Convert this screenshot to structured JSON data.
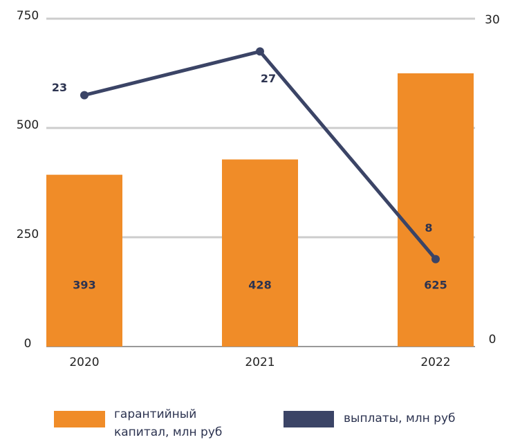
{
  "chart_data": {
    "type": "bar-line",
    "categories": [
      "2020",
      "2021",
      "2022"
    ],
    "series": [
      {
        "name": "гарантийный капитал, млн руб",
        "color": "#f08c28",
        "type": "bar",
        "values": [
          393,
          428,
          625
        ]
      },
      {
        "name": "выплаты, млн руб",
        "color": "#3b4466",
        "type": "line",
        "axis": "y2",
        "values": [
          23,
          27,
          8
        ]
      }
    ],
    "ylim": [
      0,
      750
    ],
    "yticks": [
      0,
      250,
      500,
      750
    ],
    "y2lim": [
      0,
      30
    ],
    "y2ticks": [
      0,
      30
    ],
    "grid": true
  }
}
